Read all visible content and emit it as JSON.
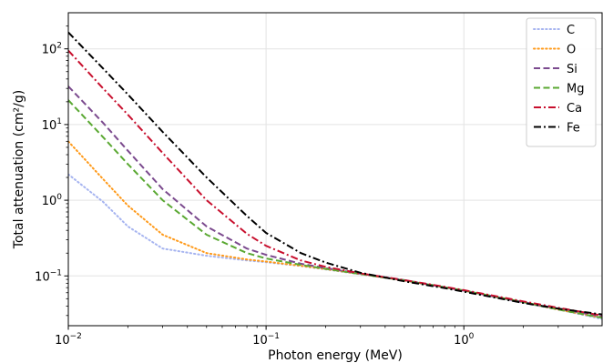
{
  "chart_data": {
    "type": "line",
    "xlabel": "Photon energy (MeV)",
    "ylabel": "Total attenuation (cm²/g)",
    "xscale": "log",
    "yscale": "log",
    "xlim": [
      0.01,
      5
    ],
    "ylim": [
      0.022,
      300
    ],
    "grid": true,
    "legend_position": "top-right",
    "x_ticks": [
      {
        "value": 0.01,
        "label": "10",
        "exp": "−2"
      },
      {
        "value": 0.1,
        "label": "10",
        "exp": "−1"
      },
      {
        "value": 1,
        "label": "10",
        "exp": "0"
      }
    ],
    "y_ticks": [
      {
        "value": 0.1,
        "label": "10",
        "exp": "−1"
      },
      {
        "value": 1,
        "label": "10",
        "exp": "0"
      },
      {
        "value": 10,
        "label": "10",
        "exp": "1"
      },
      {
        "value": 100,
        "label": "10",
        "exp": "2"
      }
    ],
    "series": [
      {
        "name": "C",
        "color": "#a6b4f0",
        "dash": "dotted",
        "x": [
          0.01,
          0.015,
          0.02,
          0.03,
          0.05,
          0.08,
          0.1,
          0.15,
          0.2,
          0.3,
          0.5,
          0.8,
          1,
          2,
          3,
          5
        ],
        "y": [
          2.2,
          0.95,
          0.45,
          0.23,
          0.185,
          0.16,
          0.152,
          0.135,
          0.122,
          0.105,
          0.087,
          0.07,
          0.064,
          0.044,
          0.036,
          0.027
        ]
      },
      {
        "name": "O",
        "color": "#ff9a1a",
        "dash": "dotted",
        "x": [
          0.01,
          0.015,
          0.02,
          0.03,
          0.05,
          0.08,
          0.1,
          0.15,
          0.2,
          0.3,
          0.5,
          0.8,
          1,
          2,
          3,
          5
        ],
        "y": [
          6.0,
          1.9,
          0.85,
          0.35,
          0.2,
          0.165,
          0.155,
          0.136,
          0.123,
          0.106,
          0.087,
          0.071,
          0.064,
          0.045,
          0.036,
          0.028
        ]
      },
      {
        "name": "Si",
        "color": "#7b4a8e",
        "dash": "dashed",
        "x": [
          0.01,
          0.015,
          0.02,
          0.03,
          0.05,
          0.08,
          0.1,
          0.15,
          0.2,
          0.3,
          0.5,
          0.8,
          1,
          2,
          3,
          5
        ],
        "y": [
          32,
          10.5,
          4.5,
          1.4,
          0.45,
          0.23,
          0.19,
          0.145,
          0.127,
          0.107,
          0.088,
          0.071,
          0.064,
          0.045,
          0.037,
          0.029
        ]
      },
      {
        "name": "Mg",
        "color": "#5aa832",
        "dash": "dashed",
        "x": [
          0.01,
          0.015,
          0.02,
          0.03,
          0.05,
          0.08,
          0.1,
          0.15,
          0.2,
          0.3,
          0.5,
          0.8,
          1,
          2,
          3,
          5
        ],
        "y": [
          21,
          6.8,
          3.0,
          1.0,
          0.35,
          0.2,
          0.17,
          0.14,
          0.124,
          0.106,
          0.087,
          0.071,
          0.064,
          0.045,
          0.036,
          0.028
        ]
      },
      {
        "name": "Ca",
        "color": "#c8102e",
        "dash": "dashdot",
        "x": [
          0.01,
          0.015,
          0.02,
          0.03,
          0.05,
          0.08,
          0.1,
          0.15,
          0.2,
          0.3,
          0.5,
          0.8,
          1,
          2,
          3,
          5
        ],
        "y": [
          95,
          30,
          13.5,
          4.2,
          1.0,
          0.36,
          0.25,
          0.16,
          0.132,
          0.108,
          0.088,
          0.072,
          0.065,
          0.046,
          0.038,
          0.03
        ]
      },
      {
        "name": "Fe",
        "color": "#000000",
        "dash": "dashdot",
        "x": [
          0.01,
          0.015,
          0.02,
          0.03,
          0.05,
          0.08,
          0.1,
          0.15,
          0.2,
          0.3,
          0.5,
          0.8,
          1,
          2,
          3,
          5
        ],
        "y": [
          165,
          55,
          25,
          8.0,
          2.0,
          0.62,
          0.37,
          0.2,
          0.15,
          0.11,
          0.085,
          0.069,
          0.062,
          0.044,
          0.037,
          0.031
        ]
      }
    ]
  }
}
